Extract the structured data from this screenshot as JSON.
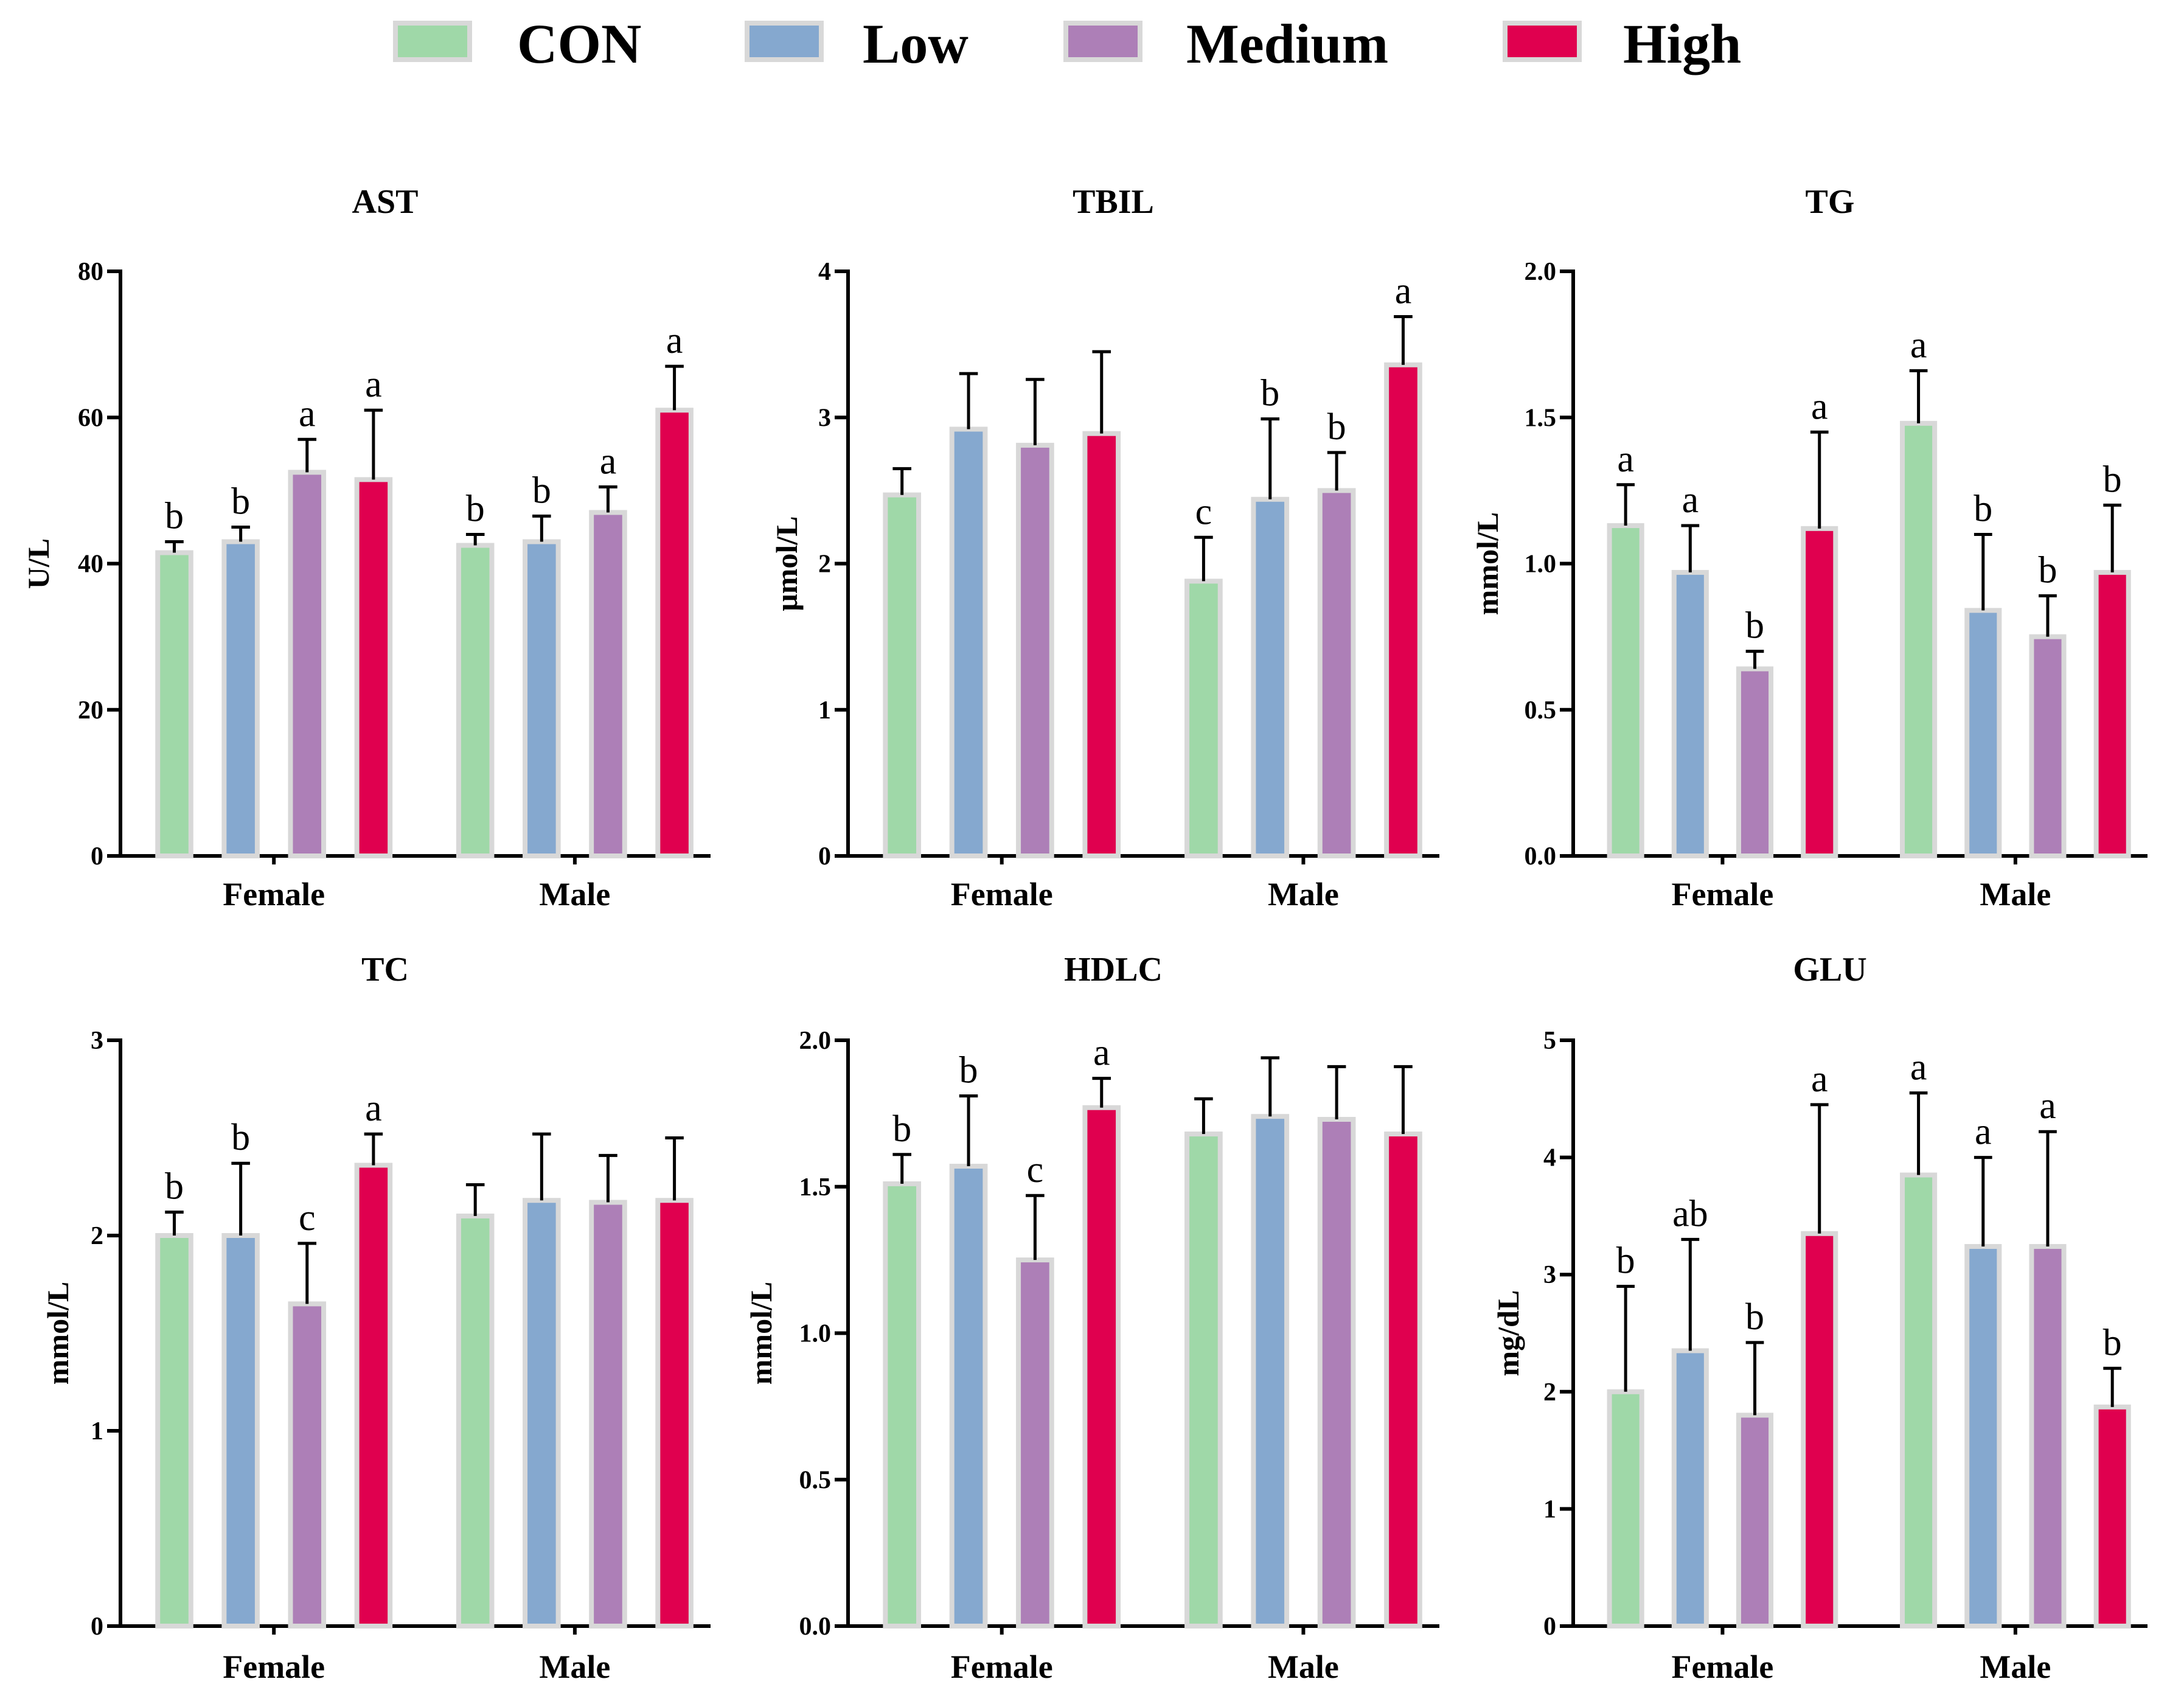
{
  "legend": [
    {
      "name": "CON",
      "color": "#9fd8a8"
    },
    {
      "name": "Low",
      "color": "#85a8cf"
    },
    {
      "name": "Medium",
      "color": "#ad7fb7"
    },
    {
      "name": "High",
      "color": "#e0004f"
    }
  ],
  "chart_data": [
    {
      "type": "bar",
      "title": "AST",
      "ylabel": "U/L",
      "ylim": [
        0,
        80
      ],
      "yticks": [
        "0",
        "20",
        "40",
        "60",
        "80"
      ],
      "ytick_values": [
        0,
        20,
        40,
        60,
        80
      ],
      "categories": [
        "Female",
        "Male"
      ],
      "series": [
        {
          "name": "CON",
          "values": [
            41.5,
            42.5
          ],
          "errors": [
            1.5,
            1.5
          ],
          "letters": [
            "b",
            "b"
          ]
        },
        {
          "name": "Low",
          "values": [
            43,
            43
          ],
          "errors": [
            2,
            3.5
          ],
          "letters": [
            "b",
            "b"
          ]
        },
        {
          "name": "Medium",
          "values": [
            52.5,
            47
          ],
          "errors": [
            4.5,
            3.5
          ],
          "letters": [
            "a",
            "a"
          ]
        },
        {
          "name": "High",
          "values": [
            51.5,
            61
          ],
          "errors": [
            9.5,
            6
          ],
          "letters": [
            "a",
            "a"
          ]
        }
      ]
    },
    {
      "type": "bar",
      "title": "TBIL",
      "ylabel": "μmol/L",
      "ylim": [
        0,
        4
      ],
      "yticks": [
        "0",
        "1",
        "2",
        "3",
        "4"
      ],
      "ytick_values": [
        0,
        1,
        2,
        3,
        4
      ],
      "categories": [
        "Female",
        "Male"
      ],
      "series": [
        {
          "name": "CON",
          "values": [
            2.47,
            1.88
          ],
          "errors": [
            0.18,
            0.3
          ],
          "letters": [
            "",
            "c"
          ]
        },
        {
          "name": "Low",
          "values": [
            2.92,
            2.44
          ],
          "errors": [
            0.38,
            0.55
          ],
          "letters": [
            "",
            "b"
          ]
        },
        {
          "name": "Medium",
          "values": [
            2.81,
            2.5
          ],
          "errors": [
            0.45,
            0.26
          ],
          "letters": [
            "",
            "b"
          ]
        },
        {
          "name": "High",
          "values": [
            2.89,
            3.36
          ],
          "errors": [
            0.56,
            0.33
          ],
          "letters": [
            "",
            "a"
          ]
        }
      ]
    },
    {
      "type": "bar",
      "title": "TG",
      "ylabel": "mmol/L",
      "ylim": [
        0,
        2
      ],
      "yticks": [
        "0.0",
        "0.5",
        "1.0",
        "1.5",
        "2.0"
      ],
      "ytick_values": [
        0,
        0.5,
        1,
        1.5,
        2
      ],
      "categories": [
        "Female",
        "Male"
      ],
      "series": [
        {
          "name": "CON",
          "values": [
            1.13,
            1.48
          ],
          "errors": [
            0.14,
            0.18
          ],
          "letters": [
            "a",
            "a"
          ]
        },
        {
          "name": "Low",
          "values": [
            0.97,
            0.84
          ],
          "errors": [
            0.16,
            0.26
          ],
          "letters": [
            "a",
            "b"
          ]
        },
        {
          "name": "Medium",
          "values": [
            0.64,
            0.75
          ],
          "errors": [
            0.06,
            0.14
          ],
          "letters": [
            "b",
            "b"
          ]
        },
        {
          "name": "High",
          "values": [
            1.12,
            0.97
          ],
          "errors": [
            0.33,
            0.23
          ],
          "letters": [
            "a",
            "b"
          ]
        }
      ]
    },
    {
      "type": "bar",
      "title": "TC",
      "ylabel": "mmol/L",
      "ylim": [
        0,
        3
      ],
      "yticks": [
        "0",
        "1",
        "2",
        "3"
      ],
      "ytick_values": [
        0,
        1,
        2,
        3
      ],
      "categories": [
        "Female",
        "Male"
      ],
      "series": [
        {
          "name": "CON",
          "values": [
            2.0,
            2.1
          ],
          "errors": [
            0.12,
            0.16
          ],
          "letters": [
            "b",
            ""
          ]
        },
        {
          "name": "Low",
          "values": [
            2.0,
            2.18
          ],
          "errors": [
            0.37,
            0.34
          ],
          "letters": [
            "b",
            ""
          ]
        },
        {
          "name": "Medium",
          "values": [
            1.65,
            2.17
          ],
          "errors": [
            0.31,
            0.24
          ],
          "letters": [
            "c",
            ""
          ]
        },
        {
          "name": "High",
          "values": [
            2.36,
            2.18
          ],
          "errors": [
            0.16,
            0.32
          ],
          "letters": [
            "a",
            ""
          ]
        }
      ]
    },
    {
      "type": "bar",
      "title": "HDLC",
      "ylabel": "mmol/L",
      "ylim": [
        0,
        2
      ],
      "yticks": [
        "0.0",
        "0.5",
        "1.0",
        "1.5",
        "2.0"
      ],
      "ytick_values": [
        0,
        0.5,
        1,
        1.5,
        2
      ],
      "categories": [
        "Female",
        "Male"
      ],
      "series": [
        {
          "name": "CON",
          "values": [
            1.51,
            1.68
          ],
          "errors": [
            0.1,
            0.12
          ],
          "letters": [
            "b",
            ""
          ]
        },
        {
          "name": "Low",
          "values": [
            1.57,
            1.74
          ],
          "errors": [
            0.24,
            0.2
          ],
          "letters": [
            "b",
            ""
          ]
        },
        {
          "name": "Medium",
          "values": [
            1.25,
            1.73
          ],
          "errors": [
            0.22,
            0.18
          ],
          "letters": [
            "c",
            ""
          ]
        },
        {
          "name": "High",
          "values": [
            1.77,
            1.68
          ],
          "errors": [
            0.1,
            0.23
          ],
          "letters": [
            "a",
            ""
          ]
        }
      ]
    },
    {
      "type": "bar",
      "title": "GLU",
      "ylabel": "mg/dL",
      "ylim": [
        0,
        5
      ],
      "yticks": [
        "0",
        "1",
        "2",
        "3",
        "4",
        "5"
      ],
      "ytick_values": [
        0,
        1,
        2,
        3,
        4,
        5
      ],
      "categories": [
        "Female",
        "Male"
      ],
      "series": [
        {
          "name": "CON",
          "values": [
            2.0,
            3.85
          ],
          "errors": [
            0.9,
            0.7
          ],
          "letters": [
            "b",
            "a"
          ]
        },
        {
          "name": "Low",
          "values": [
            2.35,
            3.24
          ],
          "errors": [
            0.95,
            0.76
          ],
          "letters": [
            "ab",
            "a"
          ]
        },
        {
          "name": "Medium",
          "values": [
            1.8,
            3.24
          ],
          "errors": [
            0.62,
            0.98
          ],
          "letters": [
            "b",
            "a"
          ]
        },
        {
          "name": "High",
          "values": [
            3.35,
            1.87
          ],
          "errors": [
            1.1,
            0.33
          ],
          "letters": [
            "a",
            "b"
          ]
        }
      ]
    }
  ]
}
